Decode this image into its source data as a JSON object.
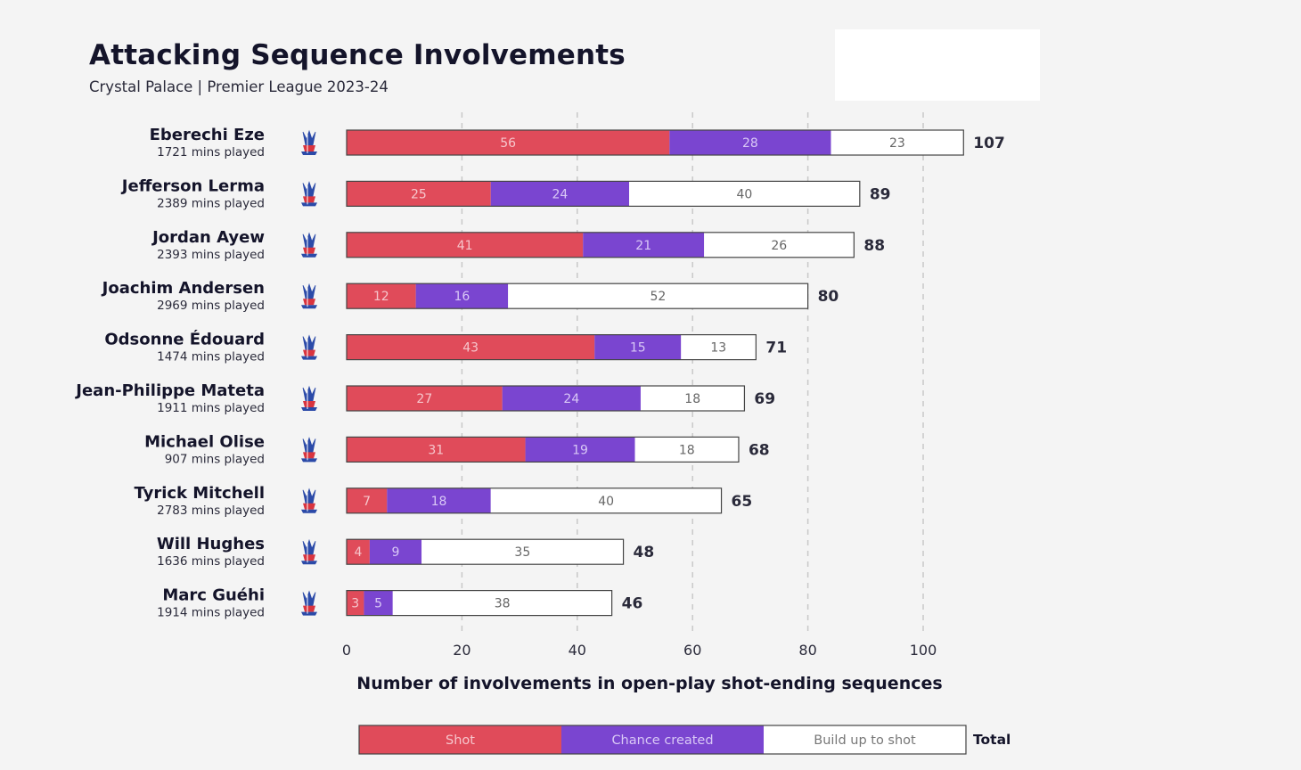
{
  "colors": {
    "shot": "#e04b5a",
    "chance_created": "#7a45d0",
    "build_up": "#ffffff",
    "outline": "#444444",
    "label_on_shot": "#f6c6cc",
    "label_on_chance": "#d9c8f6",
    "label_on_build": "#666666",
    "gridline": "#c8c8c8"
  },
  "icons": {
    "player_badge": "crystal-palace-crest-icon"
  },
  "chart_data": {
    "type": "bar",
    "orientation": "horizontal",
    "stacked": true,
    "title": "Attacking Sequence Involvements",
    "subtitle": "Crystal Palace | Premier League 2023-24",
    "xlabel": "Number of involvements in open-play shot-ending sequences",
    "xlim": [
      0,
      100
    ],
    "xticks": [
      0,
      20,
      40,
      60,
      80,
      100
    ],
    "grid": "vertical-dashed",
    "legend_position": "bottom",
    "legend": [
      "Shot",
      "Chance created",
      "Build up to shot"
    ],
    "legend_total_label": "Total",
    "categories": [
      "Eberechi Eze",
      "Jefferson Lerma",
      "Jordan Ayew",
      "Joachim Andersen",
      "Odsonne Édouard",
      "Jean-Philippe Mateta",
      "Michael Olise",
      "Tyrick Mitchell",
      "Will Hughes",
      "Marc Guéhi"
    ],
    "minutes": [
      "1721 mins played",
      "2389 mins played",
      "2393 mins played",
      "2969 mins played",
      "1474 mins played",
      "1911 mins played",
      "907 mins played",
      "2783 mins played",
      "1636 mins played",
      "1914 mins played"
    ],
    "series": [
      {
        "name": "Shot",
        "values": [
          56,
          25,
          41,
          12,
          43,
          27,
          31,
          7,
          4,
          3
        ]
      },
      {
        "name": "Chance created",
        "values": [
          28,
          24,
          21,
          16,
          15,
          24,
          19,
          18,
          9,
          5
        ]
      },
      {
        "name": "Build up to shot",
        "values": [
          23,
          40,
          26,
          52,
          13,
          18,
          18,
          40,
          35,
          38
        ]
      }
    ],
    "totals": [
      107,
      89,
      88,
      80,
      71,
      69,
      68,
      65,
      48,
      46
    ]
  }
}
